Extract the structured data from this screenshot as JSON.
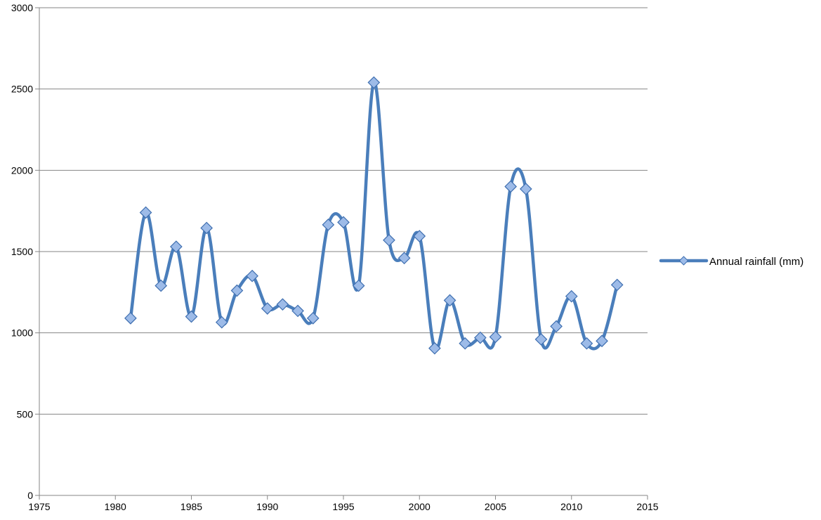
{
  "chart_data": {
    "type": "line",
    "smooth": true,
    "title": "",
    "xlabel": "",
    "ylabel": "",
    "xlim": [
      1975,
      2015
    ],
    "ylim": [
      0,
      3000
    ],
    "xticks": [
      1975,
      1980,
      1985,
      1990,
      1995,
      2000,
      2005,
      2010,
      2015
    ],
    "yticks": [
      0,
      500,
      1000,
      1500,
      2000,
      2500,
      3000
    ],
    "xtick_labels": [
      "1975",
      "1980",
      "1985",
      "1990",
      "1995",
      "2000",
      "2005",
      "2010",
      "2015"
    ],
    "ytick_labels": [
      "0",
      "500",
      "1000",
      "1500",
      "2000",
      "2500",
      "3000"
    ],
    "grid": "horizontal",
    "legend_position": "right",
    "series": [
      {
        "name": "Annual rainfall (mm)",
        "color": "#4a7ebb",
        "marker": "diamond",
        "marker_color": "#9dbbe8",
        "x": [
          1981,
          1982,
          1983,
          1984,
          1985,
          1986,
          1987,
          1988,
          1989,
          1990,
          1991,
          1992,
          1993,
          1994,
          1995,
          1996,
          1997,
          1998,
          1999,
          2000,
          2001,
          2002,
          2003,
          2004,
          2005,
          2006,
          2007,
          2008,
          2009,
          2010,
          2011,
          2012,
          2013
        ],
        "y": [
          1090,
          1740,
          1290,
          1530,
          1100,
          1645,
          1065,
          1260,
          1350,
          1150,
          1175,
          1135,
          1090,
          1665,
          1680,
          1290,
          2540,
          1570,
          1460,
          1595,
          905,
          1200,
          935,
          970,
          975,
          1900,
          1885,
          960,
          1040,
          1225,
          935,
          950,
          1295
        ]
      }
    ]
  }
}
